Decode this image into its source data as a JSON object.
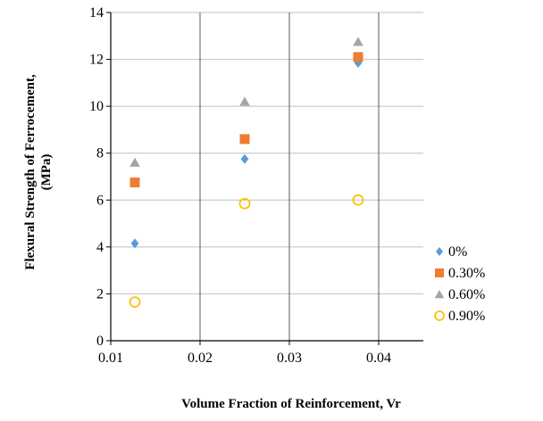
{
  "chart_data": {
    "type": "scatter",
    "title": "",
    "xlabel": "Volume Fraction of Reinforcement, Vr",
    "ylabel_lines": [
      "Flexural Strength of Ferrocement,",
      "(MPa)"
    ],
    "xlim": [
      0.01,
      0.045
    ],
    "ylim": [
      0,
      14
    ],
    "xticks": [
      "0.01",
      "0.02",
      "0.03",
      "0.04"
    ],
    "yticks": [
      "0",
      "2",
      "4",
      "6",
      "8",
      "10",
      "12",
      "14"
    ],
    "grid": "both",
    "legend_position": "right",
    "series": [
      {
        "name": "0%",
        "marker": "diamond",
        "color": "#5B9BD5",
        "x": [
          0.0127,
          0.025,
          0.0377
        ],
        "y": [
          4.15,
          7.75,
          11.85
        ]
      },
      {
        "name": "0.30%",
        "marker": "square",
        "color": "#ED7D31",
        "x": [
          0.0127,
          0.025,
          0.0377
        ],
        "y": [
          6.75,
          8.6,
          12.1
        ]
      },
      {
        "name": "0.60%",
        "marker": "triangle",
        "color": "#A5A5A5",
        "x": [
          0.0127,
          0.025,
          0.0377
        ],
        "y": [
          7.6,
          10.2,
          12.75
        ]
      },
      {
        "name": "0.90%",
        "marker": "circle-open",
        "color": "#FFC000",
        "x": [
          0.0127,
          0.025,
          0.0377
        ],
        "y": [
          1.65,
          5.85,
          6.0
        ]
      }
    ]
  }
}
